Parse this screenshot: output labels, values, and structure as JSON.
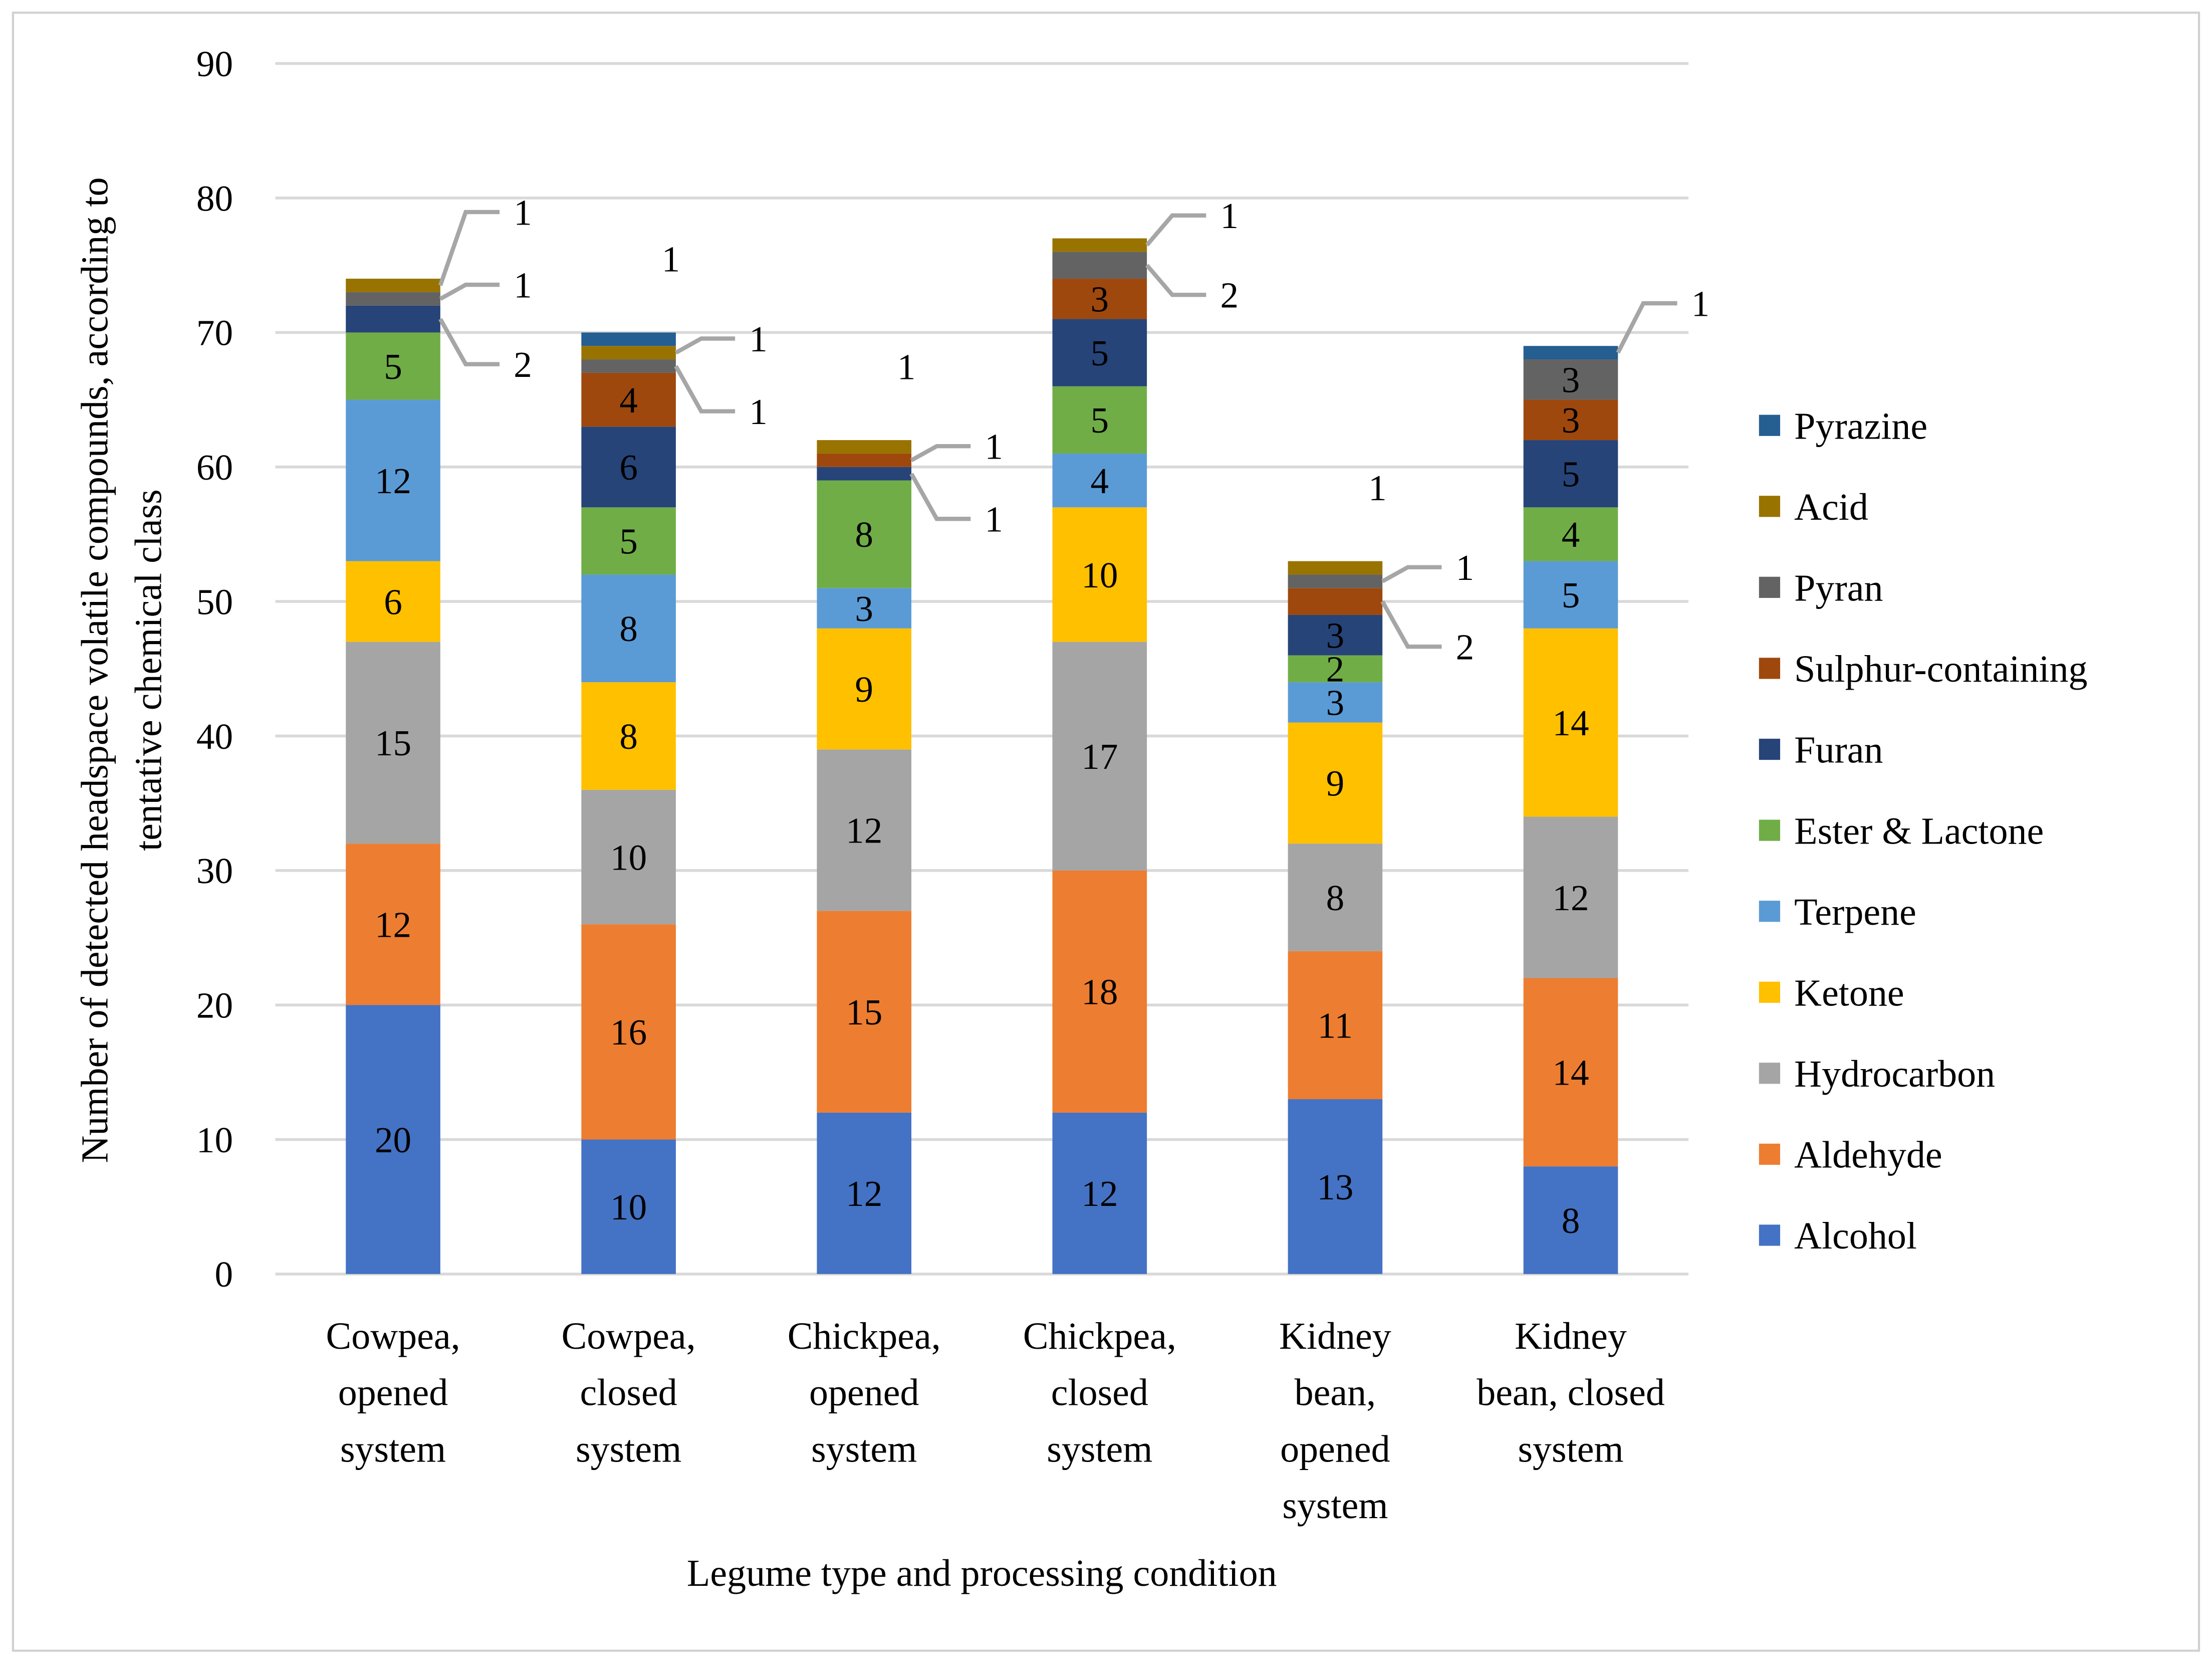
{
  "chart_data": {
    "type": "bar",
    "stacked": true,
    "xlabel": "Legume type and processing condition",
    "ylabel_lines": [
      "Number of detected headspace volatile compounds, according to",
      "tentative chemical class"
    ],
    "ylim": [
      0,
      90
    ],
    "yticks": [
      0,
      10,
      20,
      30,
      40,
      50,
      60,
      70,
      80,
      90
    ],
    "grid": true,
    "legend_position": "right",
    "categories": [
      [
        "Cowpea,",
        "opened",
        "system"
      ],
      [
        "Cowpea,",
        "closed",
        "system"
      ],
      [
        "Chickpea,",
        "opened",
        "system"
      ],
      [
        "Chickpea,",
        "closed",
        "system"
      ],
      [
        "Kidney",
        "bean,",
        "opened",
        "system"
      ],
      [
        "Kidney",
        "bean, closed",
        "system"
      ]
    ],
    "series": [
      {
        "name": "Alcohol",
        "color": "#4472C4",
        "values": [
          20,
          10,
          12,
          12,
          13,
          8
        ]
      },
      {
        "name": "Aldehyde",
        "color": "#ED7D31",
        "values": [
          12,
          16,
          15,
          18,
          11,
          14
        ]
      },
      {
        "name": "Hydrocarbon",
        "color": "#A5A5A5",
        "values": [
          15,
          10,
          12,
          17,
          8,
          12
        ]
      },
      {
        "name": "Ketone",
        "color": "#FFC000",
        "values": [
          6,
          8,
          9,
          10,
          9,
          14
        ]
      },
      {
        "name": "Terpene",
        "color": "#5B9BD5",
        "values": [
          12,
          8,
          3,
          4,
          3,
          5
        ]
      },
      {
        "name": "Ester & Lactone",
        "color": "#70AD47",
        "values": [
          5,
          5,
          8,
          5,
          2,
          4
        ]
      },
      {
        "name": "Furan",
        "color": "#264478",
        "values": [
          2,
          6,
          1,
          5,
          3,
          5
        ]
      },
      {
        "name": "Sulphur-containing",
        "color": "#9E480E",
        "values": [
          0,
          4,
          1,
          3,
          2,
          3
        ]
      },
      {
        "name": "Pyran",
        "color": "#636363",
        "values": [
          1,
          1,
          0,
          2,
          1,
          3
        ]
      },
      {
        "name": "Acid",
        "color": "#997300",
        "values": [
          1,
          1,
          1,
          1,
          1,
          0
        ]
      },
      {
        "name": "Pyrazine",
        "color": "#255E91",
        "values": [
          0,
          1,
          0,
          0,
          0,
          1
        ]
      }
    ]
  }
}
